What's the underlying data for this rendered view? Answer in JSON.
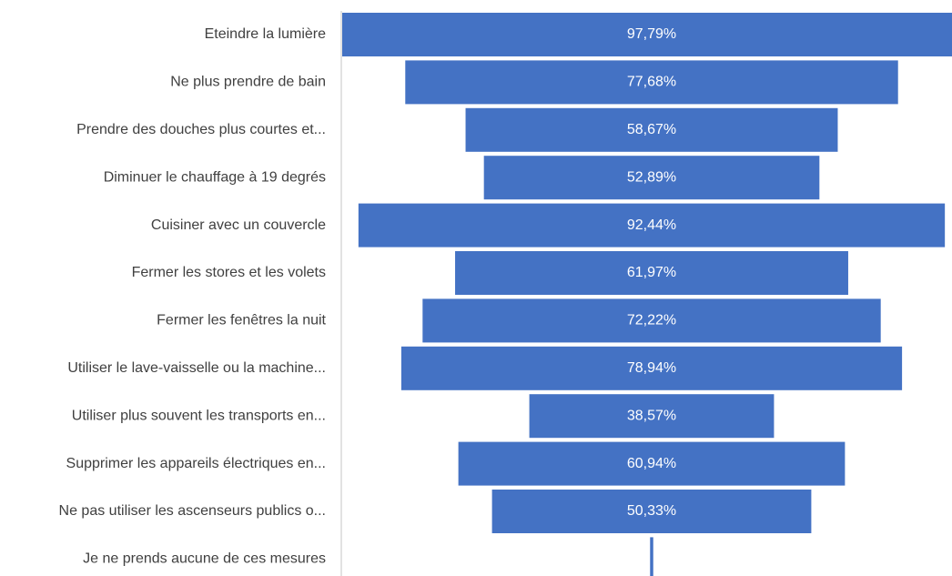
{
  "chart_data": {
    "type": "funnel",
    "categories": [
      "Eteindre la lumière",
      "Ne plus prendre de bain",
      "Prendre des douches plus courtes et...",
      "Diminuer le chauffage à 19 degrés",
      "Cuisiner avec un couvercle",
      "Fermer les stores et les volets",
      "Fermer les fenêtres la nuit",
      "Utiliser le lave-vaisselle ou la machine...",
      "Utiliser plus souvent les transports en...",
      "Supprimer les appareils électriques en...",
      "Ne pas utiliser les ascenseurs publics o...",
      "Je ne prends aucune de ces mesures"
    ],
    "values": [
      97.79,
      77.68,
      58.67,
      52.89,
      92.44,
      61.97,
      72.22,
      78.94,
      38.57,
      60.94,
      50.33,
      0.5
    ],
    "value_labels": [
      "97,79%",
      "77,68%",
      "58,67%",
      "52,89%",
      "92,44%",
      "61,97%",
      "72,22%",
      "78,94%",
      "38,57%",
      "60,94%",
      "50,33%",
      null
    ],
    "color": "#4472c4"
  }
}
